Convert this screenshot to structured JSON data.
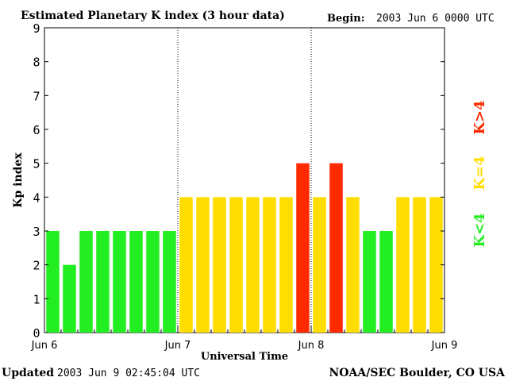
{
  "header": {
    "title": "Estimated Planetary K index (3 hour data)",
    "begin_label": "Begin:",
    "begin_value": "2003 Jun 6 0000 UTC"
  },
  "footer": {
    "updated_label": "Updated",
    "updated_value": "2003 Jun  9 02:45:04 UTC",
    "source": "NOAA/SEC Boulder, CO USA"
  },
  "legend": {
    "high": "K>4",
    "mid": "K=4",
    "low": "K<4"
  },
  "colors": {
    "low": "#22ee22",
    "mid": "#ffdd00",
    "high": "#ff2a00"
  },
  "chart_data": {
    "type": "bar",
    "title": "Estimated Planetary K index (3 hour data)",
    "xlabel": "Universal Time",
    "ylabel": "Kp index",
    "ylim": [
      0,
      9
    ],
    "yticks": [
      0,
      1,
      2,
      3,
      4,
      5,
      6,
      7,
      8,
      9
    ],
    "x_tick_labels": [
      "Jun 6",
      "Jun 7",
      "Jun 8",
      "Jun 9"
    ],
    "day_separators_after_interval": [
      8,
      16
    ],
    "interval_hours": 3,
    "values": [
      3,
      2,
      3,
      3,
      3,
      3,
      3,
      3,
      4,
      4,
      4,
      4,
      4,
      4,
      4,
      5,
      4,
      5,
      4,
      3,
      3,
      4,
      4,
      4
    ],
    "color_rule": "value < 4 green, value == 4 yellow, value > 4 red"
  }
}
